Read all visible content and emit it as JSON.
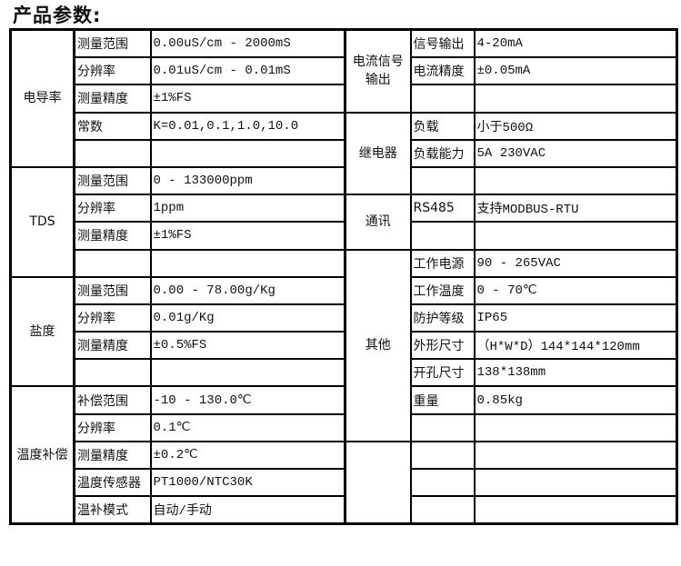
{
  "title": "产品参数:",
  "left_groups": [
    {
      "group": "电导率",
      "rows": [
        {
          "label": "测量范围",
          "value": "0.00uS/cm - 2000mS"
        },
        {
          "label": "分辨率",
          "value": "0.01uS/cm - 0.01mS"
        },
        {
          "label": "测量精度",
          "value": "±1%FS"
        },
        {
          "label": "常数",
          "value": "K=0.01,0.1,1.0,10.0"
        },
        {
          "label": "",
          "value": ""
        }
      ]
    },
    {
      "group": "TDS",
      "rows": [
        {
          "label": "测量范围",
          "value": "0 - 133000ppm"
        },
        {
          "label": "分辨率",
          "value": "1ppm"
        },
        {
          "label": "测量精度",
          "value": "±1%FS"
        },
        {
          "label": "",
          "value": ""
        }
      ]
    },
    {
      "group": "盐度",
      "rows": [
        {
          "label": "测量范围",
          "value": "0.00 - 78.00g/Kg"
        },
        {
          "label": "分辨率",
          "value": "0.01g/Kg"
        },
        {
          "label": "测量精度",
          "value": "±0.5%FS"
        },
        {
          "label": "",
          "value": ""
        }
      ]
    },
    {
      "group": "温度补偿",
      "rows": [
        {
          "label": "补偿范围",
          "value": " -10 - 130.0℃"
        },
        {
          "label": "分辨率",
          "value": "0.1℃"
        },
        {
          "label": "测量精度",
          "value": "±0.2℃"
        },
        {
          "label": "温度传感器",
          "value": "PT1000/NTC30K"
        },
        {
          "label": "温补模式",
          "value": "自动/手动"
        }
      ]
    }
  ],
  "right_groups": [
    {
      "group": "电流信号输出",
      "rows": [
        {
          "label": "信号输出",
          "value": "4-20mA"
        },
        {
          "label": "电流精度",
          "value": "±0.05mA"
        },
        {
          "label": "",
          "value": ""
        }
      ]
    },
    {
      "group": "继电器",
      "rows": [
        {
          "label": "负载",
          "value": "小于500Ω"
        },
        {
          "label": "负载能力",
          "value": "5A 230VAC"
        },
        {
          "label": "",
          "value": ""
        }
      ]
    },
    {
      "group": "通讯",
      "rows": [
        {
          "label": "RS485",
          "value": "支持MODBUS-RTU"
        },
        {
          "label": "",
          "value": ""
        }
      ]
    },
    {
      "group": "其他",
      "rows": [
        {
          "label": "工作电源",
          "value": "90 - 265VAC"
        },
        {
          "label": "工作温度",
          "value": "0 - 70℃"
        },
        {
          "label": "防护等级",
          "value": "IP65"
        },
        {
          "label": "外形尺寸",
          "value": "（H*W*D）144*144*120mm"
        },
        {
          "label": "开孔尺寸",
          "value": "138*138mm"
        },
        {
          "label": "重量",
          "value": "0.85kg"
        },
        {
          "label": "",
          "value": ""
        }
      ]
    },
    {
      "group": "",
      "rows": [
        {
          "label": "",
          "value": ""
        },
        {
          "label": "",
          "value": ""
        },
        {
          "label": "",
          "value": ""
        }
      ]
    }
  ]
}
